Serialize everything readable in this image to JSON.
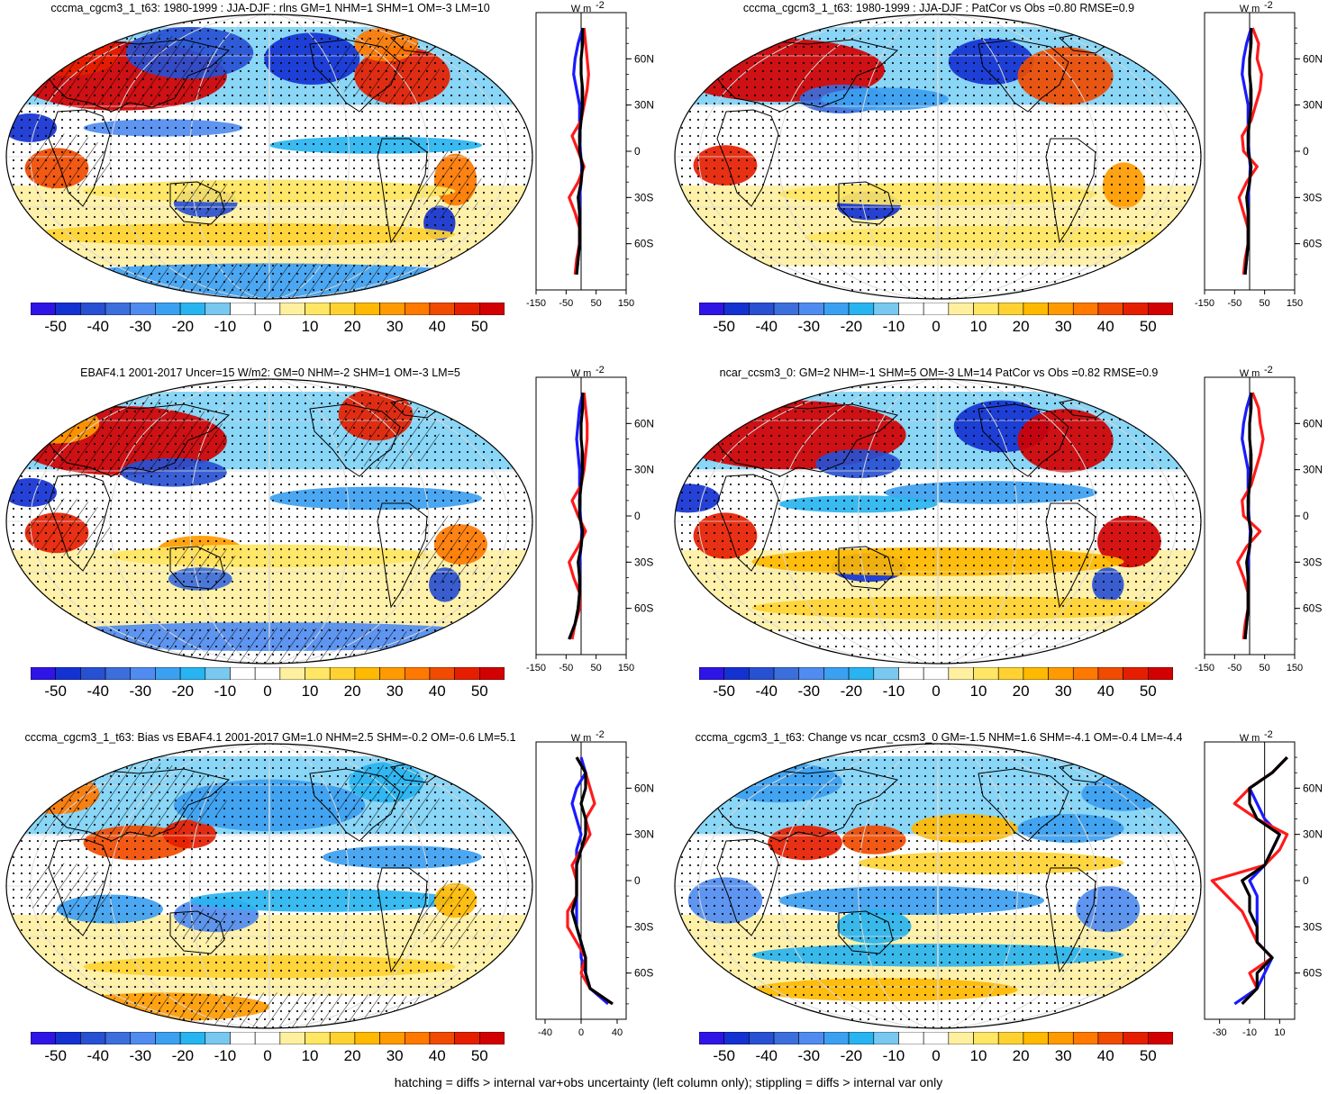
{
  "colorbar": {
    "colors": [
      "#2f14e6",
      "#1432d2",
      "#2850d2",
      "#3c6edc",
      "#508cf0",
      "#3ca0f0",
      "#28b4f0",
      "#78c8f0",
      "#ffffff",
      "#ffffff",
      "#fff0a0",
      "#ffe664",
      "#ffd232",
      "#ffb900",
      "#ff9b00",
      "#ff7800",
      "#f04b00",
      "#e61e00",
      "#d20000"
    ],
    "labels": [
      "-50",
      "-40",
      "-30",
      "-20",
      "-10",
      "0",
      "10",
      "20",
      "30",
      "40",
      "50"
    ]
  },
  "profile_unit": "W m",
  "panels": [
    {
      "title": "cccma_cgcm3_1_t63: 1980-1999 : JJA-DJF : rlns GM=1 NHM=1 SHM=1 OM=-3 LM=10",
      "hatched": true,
      "profile_ticks": [
        "-150",
        "-50",
        "50",
        "150"
      ],
      "profile_xrange": [
        -150,
        150
      ],
      "lat_labels": [
        "60N",
        "30N",
        "0",
        "30S",
        "60S"
      ],
      "profile_series": [
        {
          "name": "blue",
          "color": "#1a1aff",
          "lat": [
            80,
            70,
            60,
            50,
            40,
            30,
            20,
            10,
            0,
            -10,
            -20,
            -30,
            -40,
            -50,
            -60,
            -70,
            -80
          ],
          "value": [
            5,
            -10,
            -20,
            -25,
            -15,
            -5,
            -5,
            -5,
            -2,
            2,
            0,
            -5,
            -5,
            -5,
            -5,
            -10,
            -15
          ]
        },
        {
          "name": "red",
          "color": "#ff1a1a",
          "lat": [
            80,
            70,
            60,
            50,
            40,
            30,
            20,
            10,
            0,
            -10,
            -20,
            -30,
            -40,
            -50,
            -60,
            -70,
            -80
          ],
          "value": [
            10,
            15,
            20,
            25,
            20,
            10,
            0,
            -30,
            -10,
            10,
            -10,
            -40,
            -20,
            -5,
            -5,
            -15,
            -20
          ]
        },
        {
          "name": "black",
          "color": "#000000",
          "lat": [
            80,
            70,
            60,
            50,
            40,
            30,
            20,
            10,
            0,
            -10,
            -20,
            -30,
            -40,
            -50,
            -60,
            -70,
            -80
          ],
          "value": [
            5,
            5,
            0,
            0,
            5,
            5,
            0,
            -5,
            -5,
            5,
            0,
            -10,
            -5,
            -5,
            -5,
            -10,
            -15
          ]
        }
      ]
    },
    {
      "title": "cccma_cgcm3_1_t63: 1980-1999 : JJA-DJF : PatCor vs Obs =0.80 RMSE=0.9",
      "hatched": false,
      "profile_ticks": [
        "-150",
        "-50",
        "50",
        "150"
      ],
      "profile_xrange": [
        -150,
        150
      ],
      "lat_labels": [
        "60N",
        "30N",
        "0",
        "30S",
        "60S"
      ],
      "profile_series": [
        {
          "name": "blue",
          "color": "#1a1aff",
          "lat": [
            80,
            70,
            60,
            50,
            40,
            30,
            20,
            10,
            0,
            -10,
            -20,
            -30,
            -40,
            -50,
            -60,
            -70,
            -80
          ],
          "value": [
            5,
            -10,
            -20,
            -25,
            -15,
            -5,
            -5,
            -5,
            -2,
            2,
            0,
            -5,
            -5,
            -5,
            -5,
            -10,
            -15
          ]
        },
        {
          "name": "red",
          "color": "#ff1a1a",
          "lat": [
            80,
            70,
            60,
            50,
            40,
            30,
            20,
            10,
            0,
            -10,
            -20,
            -30,
            -40,
            -50,
            -60,
            -70,
            -80
          ],
          "value": [
            10,
            30,
            25,
            40,
            35,
            20,
            5,
            -25,
            -20,
            25,
            -10,
            -35,
            -20,
            -5,
            -5,
            -15,
            -20
          ]
        },
        {
          "name": "black",
          "color": "#000000",
          "lat": [
            80,
            70,
            60,
            50,
            40,
            30,
            20,
            10,
            0,
            -10,
            -20,
            -30,
            -40,
            -50,
            -60,
            -70,
            -80
          ],
          "value": [
            5,
            5,
            0,
            0,
            5,
            5,
            0,
            -5,
            -5,
            5,
            0,
            -10,
            -5,
            -5,
            -5,
            -10,
            -15
          ]
        }
      ]
    },
    {
      "title": "EBAF4.1 2001-2017 Uncer=15 W/m2: GM=0 NHM=-2 SHM=1 OM=-3 LM=5",
      "hatched": true,
      "profile_ticks": [
        "-150",
        "-50",
        "50",
        "150"
      ],
      "profile_xrange": [
        -150,
        150
      ],
      "lat_labels": [
        "60N",
        "30N",
        "0",
        "30S",
        "60S"
      ],
      "profile_series": [
        {
          "name": "blue",
          "color": "#1a1aff",
          "lat": [
            80,
            70,
            60,
            50,
            40,
            30,
            20,
            10,
            0,
            -10,
            -20,
            -30,
            -40,
            -50,
            -60,
            -70,
            -80
          ],
          "value": [
            5,
            -5,
            -10,
            -15,
            -10,
            -5,
            -5,
            -5,
            -2,
            2,
            0,
            -5,
            -5,
            -5,
            -10,
            -20,
            -40
          ]
        },
        {
          "name": "red",
          "color": "#ff1a1a",
          "lat": [
            80,
            70,
            60,
            50,
            40,
            30,
            20,
            10,
            0,
            -10,
            -20,
            -30,
            -40,
            -50,
            -60,
            -70,
            -80
          ],
          "value": [
            10,
            15,
            20,
            20,
            15,
            10,
            0,
            -30,
            -10,
            15,
            -10,
            -40,
            -25,
            -5,
            -5,
            -20,
            -30
          ]
        },
        {
          "name": "black",
          "color": "#000000",
          "lat": [
            80,
            70,
            60,
            50,
            40,
            30,
            20,
            10,
            0,
            -10,
            -20,
            -30,
            -40,
            -50,
            -60,
            -70,
            -80
          ],
          "value": [
            5,
            5,
            0,
            0,
            5,
            5,
            0,
            -5,
            -5,
            5,
            0,
            -10,
            -5,
            -5,
            -10,
            -20,
            -40
          ]
        }
      ]
    },
    {
      "title": "ncar_ccsm3_0: GM=2 NHM=-1 SHM=5 OM=-3 LM=14 PatCor vs Obs =0.82 RMSE=0.9",
      "hatched": false,
      "profile_ticks": [
        "-150",
        "-50",
        "50",
        "150"
      ],
      "profile_xrange": [
        -150,
        150
      ],
      "lat_labels": [
        "60N",
        "30N",
        "0",
        "30S",
        "60S"
      ],
      "profile_series": [
        {
          "name": "blue",
          "color": "#1a1aff",
          "lat": [
            80,
            70,
            60,
            50,
            40,
            30,
            20,
            10,
            0,
            -10,
            -20,
            -30,
            -40,
            -50,
            -60,
            -70,
            -80
          ],
          "value": [
            5,
            -10,
            -20,
            -25,
            -15,
            -5,
            -5,
            -5,
            -2,
            2,
            0,
            -5,
            -5,
            -5,
            -5,
            -10,
            -15
          ]
        },
        {
          "name": "red",
          "color": "#ff1a1a",
          "lat": [
            80,
            70,
            60,
            50,
            40,
            30,
            20,
            10,
            0,
            -10,
            -20,
            -30,
            -40,
            -50,
            -60,
            -70,
            -80
          ],
          "value": [
            10,
            30,
            35,
            45,
            35,
            20,
            5,
            -25,
            -20,
            35,
            -10,
            -40,
            -20,
            -5,
            -5,
            -15,
            -20
          ]
        },
        {
          "name": "black",
          "color": "#000000",
          "lat": [
            80,
            70,
            60,
            50,
            40,
            30,
            20,
            10,
            0,
            -10,
            -20,
            -30,
            -40,
            -50,
            -60,
            -70,
            -80
          ],
          "value": [
            5,
            5,
            0,
            0,
            5,
            5,
            0,
            -5,
            -5,
            5,
            0,
            -10,
            -5,
            -5,
            -5,
            -10,
            -15
          ]
        }
      ]
    },
    {
      "title": "cccma_cgcm3_1_t63: Bias vs EBAF4.1 2001-2017 GM=1.0 NHM=2.5 SHM=-0.2 OM=-0.6 LM=5.1",
      "hatched": true,
      "profile_ticks": [
        "-40",
        "0",
        "40"
      ],
      "profile_xrange": [
        -50,
        50
      ],
      "lat_labels": [
        "60N",
        "30N",
        "0",
        "30S",
        "60S"
      ],
      "profile_series": [
        {
          "name": "blue",
          "color": "#1a1aff",
          "lat": [
            80,
            70,
            60,
            50,
            40,
            30,
            20,
            10,
            0,
            -10,
            -20,
            -30,
            -40,
            -50,
            -60,
            -70,
            -80
          ],
          "value": [
            0,
            5,
            -5,
            -10,
            -5,
            0,
            -5,
            -5,
            -5,
            -5,
            -5,
            -5,
            0,
            0,
            5,
            10,
            30
          ]
        },
        {
          "name": "red",
          "color": "#ff1a1a",
          "lat": [
            80,
            70,
            60,
            50,
            40,
            30,
            20,
            10,
            0,
            -10,
            -20,
            -30,
            -40,
            -50,
            -60,
            -70,
            -80
          ],
          "value": [
            -5,
            5,
            10,
            15,
            5,
            10,
            0,
            -10,
            -5,
            -5,
            -15,
            -15,
            -5,
            5,
            0,
            10,
            35
          ]
        },
        {
          "name": "black",
          "color": "#000000",
          "lat": [
            80,
            70,
            60,
            50,
            40,
            30,
            20,
            10,
            0,
            -10,
            -20,
            -30,
            -40,
            -50,
            -60,
            -70,
            -80
          ],
          "value": [
            -5,
            5,
            5,
            0,
            5,
            5,
            0,
            -5,
            -5,
            -5,
            -10,
            -5,
            0,
            5,
            5,
            10,
            35
          ]
        }
      ]
    },
    {
      "title": "cccma_cgcm3_1_t63: Change vs ncar_ccsm3_0 GM=-1.5 NHM=1.6 SHM=-4.1 OM=-0.4 LM=-4.4",
      "hatched": false,
      "profile_ticks": [
        "-30",
        "-10",
        "10"
      ],
      "profile_xrange": [
        -40,
        20
      ],
      "lat_labels": [
        "60N",
        "30N",
        "0",
        "30S",
        "60S"
      ],
      "profile_series": [
        {
          "name": "blue",
          "color": "#1a1aff",
          "lat": [
            80,
            70,
            60,
            50,
            40,
            30,
            20,
            10,
            0,
            -10,
            -20,
            -30,
            -40,
            -50,
            -60,
            -70,
            -80
          ],
          "value": [
            15,
            5,
            -10,
            -5,
            0,
            10,
            5,
            0,
            -10,
            -5,
            -5,
            -5,
            -5,
            5,
            0,
            -5,
            -20
          ]
        },
        {
          "name": "red",
          "color": "#ff1a1a",
          "lat": [
            80,
            70,
            60,
            50,
            40,
            30,
            20,
            10,
            0,
            -10,
            -20,
            -30,
            -40,
            -50,
            -60,
            -70,
            -80
          ],
          "value": [
            15,
            5,
            -10,
            -20,
            -5,
            15,
            10,
            0,
            -35,
            -25,
            -15,
            -10,
            -5,
            5,
            -10,
            -5,
            -15
          ]
        },
        {
          "name": "black",
          "color": "#000000",
          "lat": [
            80,
            70,
            60,
            50,
            40,
            30,
            20,
            10,
            0,
            -10,
            -20,
            -30,
            -40,
            -50,
            -60,
            -70,
            -80
          ],
          "value": [
            15,
            5,
            -10,
            -10,
            -5,
            10,
            5,
            0,
            -15,
            -10,
            -10,
            -5,
            -5,
            5,
            -5,
            -5,
            -15
          ]
        }
      ]
    }
  ],
  "footer": "hatching = diffs > internal var+obs uncertainty (left column only); stippling = diffs > internal var only"
}
